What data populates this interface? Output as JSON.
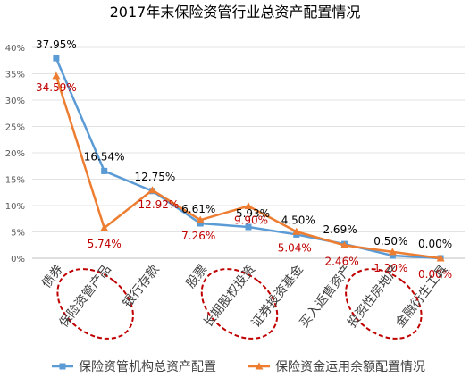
{
  "chart_data": {
    "type": "line",
    "title": "2017年末保险资管行业总资产配置情况",
    "categories": [
      "债券",
      "保险资管产品",
      "银行存款",
      "股票",
      "长期股权投资",
      "证券投资基金",
      "买入返售资产",
      "投资性房地产",
      "金融衍生工具"
    ],
    "y_ticks": [
      "0%",
      "5%",
      "10%",
      "15%",
      "20%",
      "25%",
      "30%",
      "35%",
      "40%"
    ],
    "ylim": [
      0,
      40
    ],
    "grid": true,
    "legend_position": "bottom",
    "series": [
      {
        "name": "保险资管机构总资产配置",
        "color": "#5b9bd5",
        "values": [
          37.95,
          16.54,
          12.75,
          6.61,
          5.93,
          4.5,
          2.69,
          0.5,
          0.0
        ],
        "labels": [
          "37.95%",
          "16.54%",
          "12.75%",
          "6.61%",
          "5.93%",
          "4.50%",
          "2.69%",
          "0.50%",
          "0.00%"
        ],
        "label_color": "#000000"
      },
      {
        "name": "保险资金运用余额配置情况",
        "color": "#ed7d31",
        "values": [
          34.59,
          5.74,
          12.92,
          7.26,
          9.9,
          5.04,
          2.46,
          1.2,
          0.0
        ],
        "labels": [
          "34.59%",
          "5.74%",
          "12.92%",
          "7.26%",
          "9.90%",
          "5.04%",
          "2.46%",
          "1.20%",
          "0.00%"
        ],
        "label_color": "#c00000"
      }
    ],
    "highlighted_categories": [
      "保险资管产品",
      "长期股权投资",
      "投资性房地产"
    ],
    "highlight_color": "#c00000"
  }
}
